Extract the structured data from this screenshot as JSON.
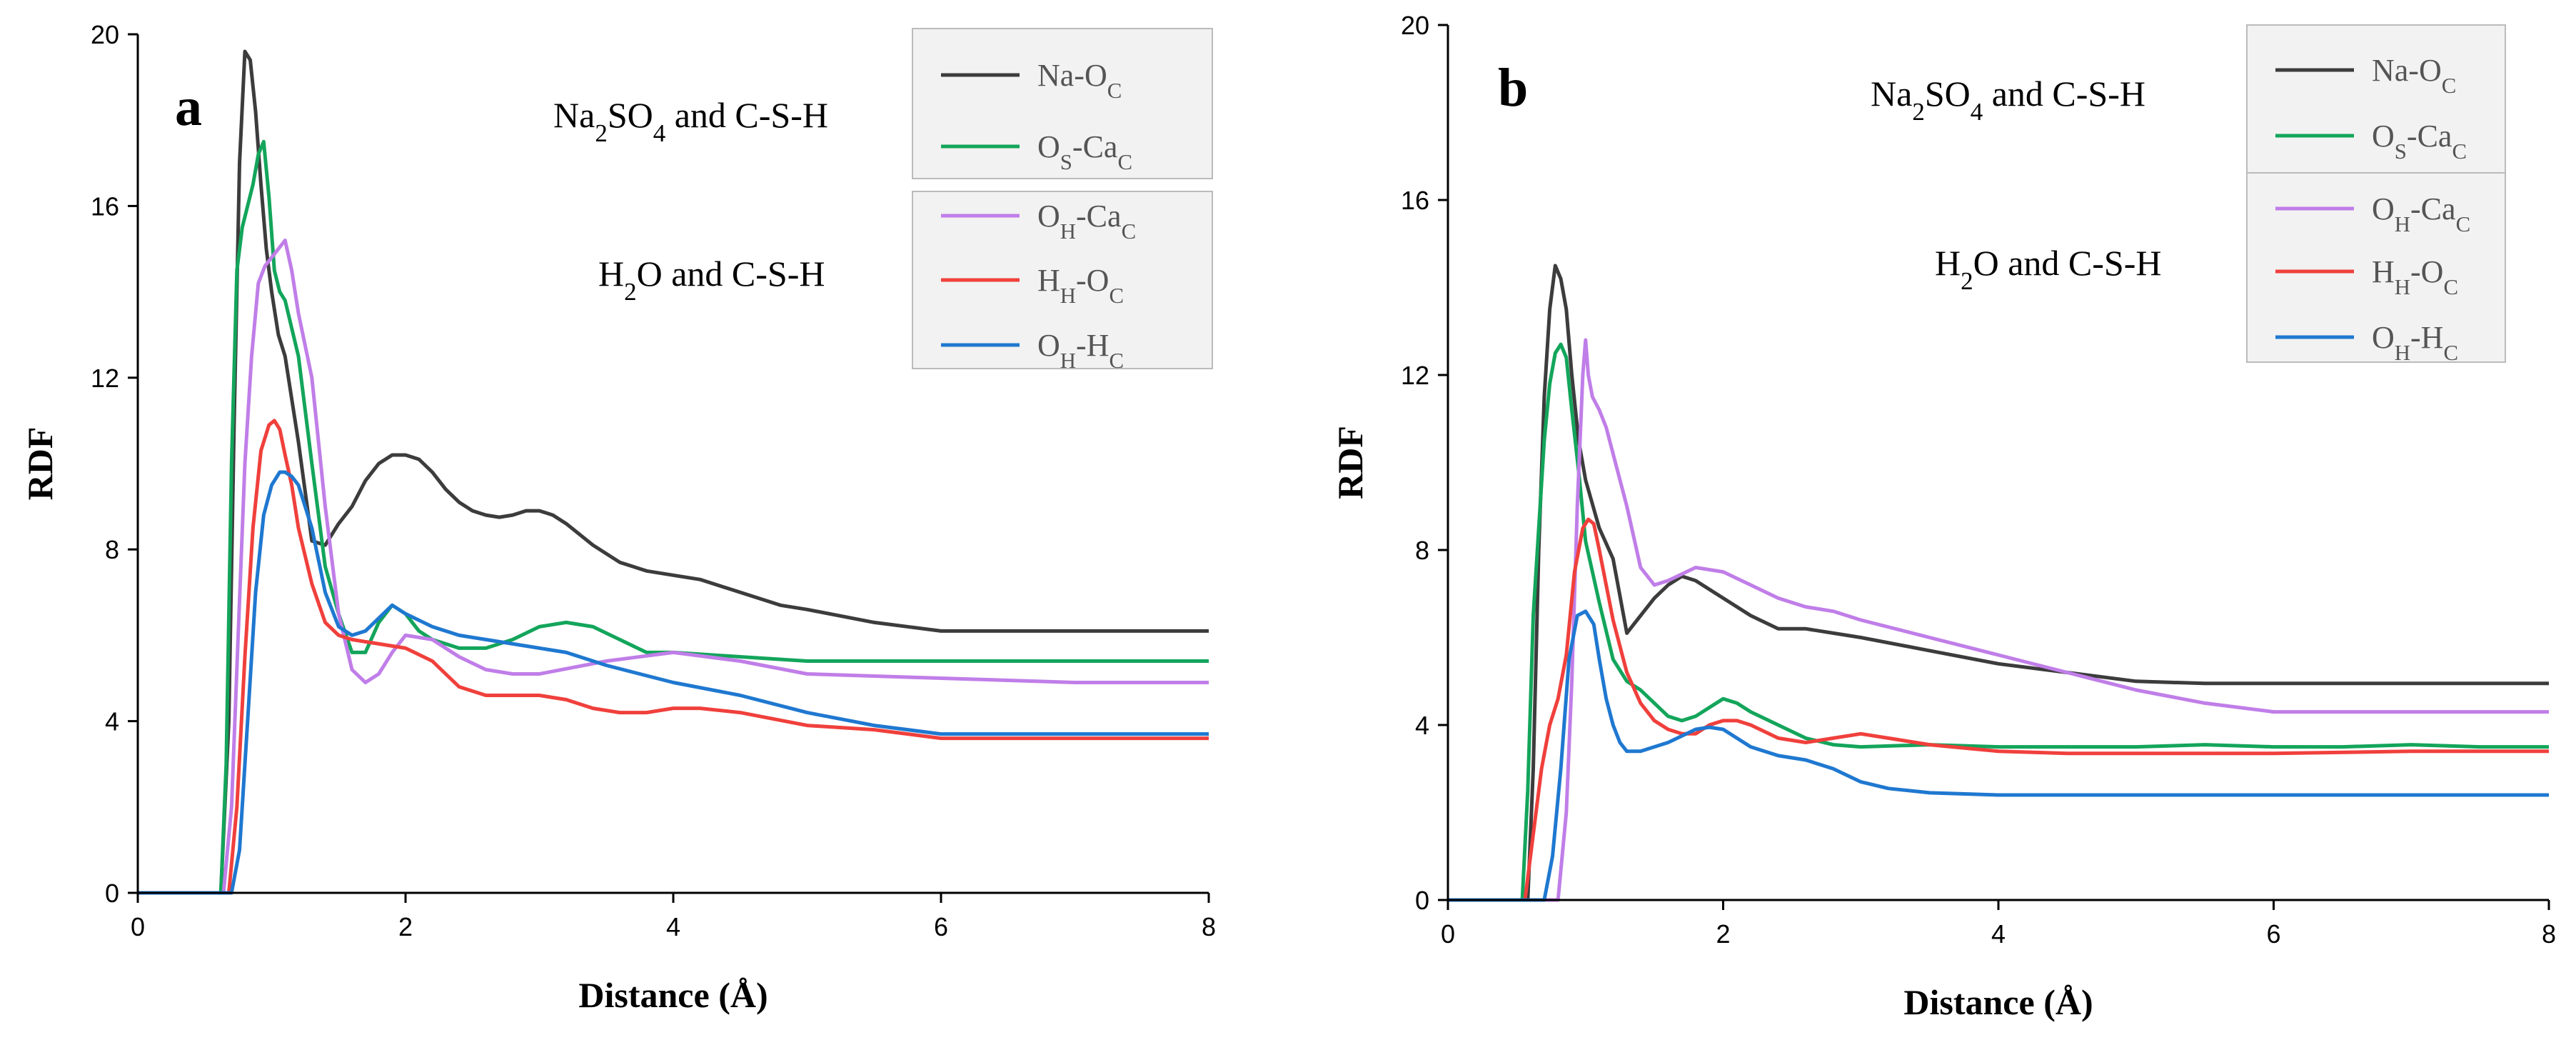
{
  "chart_data": [
    {
      "panel": "a",
      "type": "line",
      "xlabel": "Distance (Å)",
      "ylabel": "RDF",
      "xlim": [
        0,
        8
      ],
      "ylim": [
        0,
        20
      ],
      "xticks": [
        0,
        2,
        4,
        6,
        8
      ],
      "yticks": [
        0,
        4,
        8,
        12,
        16,
        20
      ],
      "groups": [
        {
          "label_main": "Na",
          "label_sub": "2",
          "label_main2": "SO",
          "label_sub2": "4",
          "label_rest": " and C-S-H",
          "series": [
            0,
            1
          ]
        },
        {
          "label_main": "H",
          "label_sub": "2",
          "label_main2": "O",
          "label_sub2": "",
          "label_rest": " and C-S-H",
          "series": [
            2,
            3,
            4
          ]
        }
      ],
      "series": [
        {
          "name": "Na-OC",
          "label_a": "Na-O",
          "sub_a": "C",
          "label_b": "",
          "sub_b": "",
          "color": "#3c3c3c",
          "x": [
            0,
            0.62,
            0.68,
            0.72,
            0.76,
            0.8,
            0.84,
            0.88,
            0.92,
            0.96,
            1.0,
            1.05,
            1.1,
            1.2,
            1.3,
            1.4,
            1.5,
            1.6,
            1.7,
            1.8,
            1.9,
            2.0,
            2.1,
            2.2,
            2.3,
            2.4,
            2.5,
            2.6,
            2.7,
            2.8,
            2.9,
            3.0,
            3.1,
            3.2,
            3.4,
            3.6,
            3.8,
            4.0,
            4.2,
            4.4,
            4.6,
            4.8,
            5.0,
            5.5,
            6.0,
            7.0,
            8.0
          ],
          "y": [
            0,
            0,
            4,
            11,
            17,
            19.6,
            19.4,
            18.2,
            16.5,
            15.0,
            14.0,
            13.0,
            12.5,
            10.5,
            8.2,
            8.1,
            8.6,
            9.0,
            9.6,
            10.0,
            10.2,
            10.2,
            10.1,
            9.8,
            9.4,
            9.1,
            8.9,
            8.8,
            8.75,
            8.8,
            8.9,
            8.9,
            8.8,
            8.6,
            8.1,
            7.7,
            7.5,
            7.4,
            7.3,
            7.1,
            6.9,
            6.7,
            6.6,
            6.3,
            6.1,
            6.1,
            6.1
          ]
        },
        {
          "name": "OS-CaC",
          "label_a": "O",
          "sub_a": "S",
          "label_b": "-Ca",
          "sub_b": "C",
          "color": "#13a55b",
          "x": [
            0,
            0.62,
            0.66,
            0.7,
            0.74,
            0.78,
            0.82,
            0.86,
            0.9,
            0.94,
            0.98,
            1.02,
            1.06,
            1.1,
            1.2,
            1.3,
            1.4,
            1.5,
            1.6,
            1.7,
            1.8,
            1.9,
            2.0,
            2.1,
            2.2,
            2.4,
            2.6,
            2.8,
            3.0,
            3.2,
            3.4,
            3.6,
            3.8,
            4.0,
            4.5,
            5.0,
            6.0,
            7.0,
            8.0
          ],
          "y": [
            0,
            0,
            3,
            10,
            14.5,
            15.5,
            16.0,
            16.5,
            17.2,
            17.5,
            16.2,
            14.5,
            14.0,
            13.8,
            12.5,
            10.0,
            7.6,
            6.5,
            5.6,
            5.6,
            6.3,
            6.7,
            6.5,
            6.1,
            5.9,
            5.7,
            5.7,
            5.9,
            6.2,
            6.3,
            6.2,
            5.9,
            5.6,
            5.6,
            5.5,
            5.4,
            5.4,
            5.4,
            5.4
          ]
        },
        {
          "name": "OH-CaC",
          "label_a": "O",
          "sub_a": "H",
          "label_b": "-Ca",
          "sub_b": "C",
          "color": "#c07ee8",
          "x": [
            0,
            0.64,
            0.7,
            0.75,
            0.8,
            0.85,
            0.9,
            0.95,
            1.0,
            1.05,
            1.1,
            1.15,
            1.2,
            1.3,
            1.4,
            1.5,
            1.6,
            1.7,
            1.8,
            1.9,
            2.0,
            2.2,
            2.4,
            2.6,
            2.8,
            3.0,
            3.5,
            4.0,
            4.5,
            5.0,
            6.0,
            7.0,
            8.0
          ],
          "y": [
            0,
            0,
            2,
            6,
            10,
            12.5,
            14.2,
            14.6,
            14.8,
            15.0,
            15.2,
            14.5,
            13.5,
            12.0,
            9.0,
            6.5,
            5.2,
            4.9,
            5.1,
            5.6,
            6.0,
            5.9,
            5.5,
            5.2,
            5.1,
            5.1,
            5.4,
            5.6,
            5.4,
            5.1,
            5.0,
            4.9,
            4.9
          ]
        },
        {
          "name": "HH-OC",
          "label_a": "H",
          "sub_a": "H",
          "label_b": "-O",
          "sub_b": "C",
          "color": "#f0403c",
          "x": [
            0,
            0.68,
            0.74,
            0.8,
            0.86,
            0.92,
            0.98,
            1.02,
            1.06,
            1.1,
            1.15,
            1.2,
            1.3,
            1.4,
            1.5,
            1.6,
            1.8,
            2.0,
            2.2,
            2.4,
            2.6,
            2.8,
            3.0,
            3.2,
            3.4,
            3.6,
            3.8,
            4.0,
            4.2,
            4.5,
            5.0,
            5.5,
            6.0,
            7.0,
            8.0
          ],
          "y": [
            0,
            0,
            2,
            5.5,
            8.5,
            10.3,
            10.9,
            11.0,
            10.8,
            10.2,
            9.5,
            8.5,
            7.2,
            6.3,
            6.0,
            5.9,
            5.8,
            5.7,
            5.4,
            4.8,
            4.6,
            4.6,
            4.6,
            4.5,
            4.3,
            4.2,
            4.2,
            4.3,
            4.3,
            4.2,
            3.9,
            3.8,
            3.6,
            3.6,
            3.6
          ]
        },
        {
          "name": "OH-HC",
          "label_a": "O",
          "sub_a": "H",
          "label_b": "-H",
          "sub_b": "C",
          "color": "#1f78d0",
          "x": [
            0,
            0.7,
            0.76,
            0.82,
            0.88,
            0.94,
            1.0,
            1.06,
            1.1,
            1.15,
            1.2,
            1.3,
            1.4,
            1.5,
            1.6,
            1.7,
            1.8,
            1.9,
            2.0,
            2.2,
            2.4,
            2.6,
            2.8,
            3.0,
            3.2,
            3.5,
            4.0,
            4.5,
            5.0,
            5.5,
            6.0,
            7.0,
            8.0
          ],
          "y": [
            0,
            0,
            1,
            4,
            7.0,
            8.8,
            9.5,
            9.8,
            9.8,
            9.7,
            9.5,
            8.5,
            7.0,
            6.2,
            6.0,
            6.1,
            6.4,
            6.7,
            6.5,
            6.2,
            6.0,
            5.9,
            5.8,
            5.7,
            5.6,
            5.3,
            4.9,
            4.6,
            4.2,
            3.9,
            3.7,
            3.7,
            3.7
          ]
        }
      ]
    },
    {
      "panel": "b",
      "type": "line",
      "xlabel": "Distance (Å)",
      "ylabel": "RDF",
      "xlim": [
        0,
        8
      ],
      "ylim": [
        0,
        20
      ],
      "xticks": [
        0,
        2,
        4,
        6,
        8
      ],
      "yticks": [
        0,
        4,
        8,
        12,
        16,
        20
      ],
      "groups": [
        {
          "label_main": "Na",
          "label_sub": "2",
          "label_main2": "SO",
          "label_sub2": "4",
          "label_rest": " and C-S-H",
          "series": [
            0,
            1
          ]
        },
        {
          "label_main": "H",
          "label_sub": "2",
          "label_main2": "O",
          "label_sub2": "",
          "label_rest": " and C-S-H",
          "series": [
            2,
            3,
            4
          ]
        }
      ],
      "series": [
        {
          "name": "Na-OC",
          "label_a": "Na-O",
          "sub_a": "C",
          "label_b": "",
          "sub_b": "",
          "color": "#3c3c3c",
          "x": [
            0,
            0.58,
            0.62,
            0.66,
            0.7,
            0.74,
            0.78,
            0.82,
            0.86,
            0.9,
            0.95,
            1.0,
            1.1,
            1.2,
            1.3,
            1.4,
            1.5,
            1.6,
            1.7,
            1.8,
            1.9,
            2.0,
            2.2,
            2.4,
            2.6,
            2.8,
            3.0,
            3.5,
            4.0,
            4.5,
            5.0,
            5.5,
            6.0,
            7.0,
            8.0
          ],
          "y": [
            0,
            0,
            3,
            8,
            11.5,
            13.5,
            14.5,
            14.2,
            13.5,
            12.0,
            10.5,
            9.6,
            8.5,
            7.8,
            6.1,
            6.5,
            6.9,
            7.2,
            7.4,
            7.3,
            7.1,
            6.9,
            6.5,
            6.2,
            6.2,
            6.1,
            6.0,
            5.7,
            5.4,
            5.2,
            5.0,
            4.95,
            4.95,
            4.95,
            4.95
          ]
        },
        {
          "name": "OS-CaC",
          "label_a": "O",
          "sub_a": "S",
          "label_b": "-Ca",
          "sub_b": "C",
          "color": "#13a55b",
          "x": [
            0,
            0.54,
            0.58,
            0.62,
            0.66,
            0.7,
            0.74,
            0.78,
            0.82,
            0.86,
            0.9,
            0.95,
            1.0,
            1.1,
            1.2,
            1.3,
            1.4,
            1.5,
            1.6,
            1.7,
            1.8,
            1.9,
            2.0,
            2.1,
            2.2,
            2.4,
            2.6,
            2.8,
            3.0,
            3.5,
            4.0,
            4.5,
            5.0,
            5.5,
            6.0,
            6.5,
            7.0,
            7.5,
            8.0
          ],
          "y": [
            0,
            0,
            2.5,
            6.5,
            8.5,
            10.5,
            11.8,
            12.5,
            12.7,
            12.4,
            11.2,
            9.8,
            8.2,
            6.8,
            5.5,
            5.0,
            4.8,
            4.5,
            4.2,
            4.1,
            4.2,
            4.4,
            4.6,
            4.5,
            4.3,
            4.0,
            3.7,
            3.55,
            3.5,
            3.55,
            3.5,
            3.5,
            3.5,
            3.55,
            3.5,
            3.5,
            3.55,
            3.5,
            3.5
          ]
        },
        {
          "name": "OH-CaC",
          "label_a": "O",
          "sub_a": "H",
          "label_b": "-Ca",
          "sub_b": "C",
          "color": "#c07ee8",
          "x": [
            0,
            0.8,
            0.86,
            0.9,
            0.94,
            0.98,
            1.0,
            1.02,
            1.05,
            1.1,
            1.15,
            1.2,
            1.3,
            1.4,
            1.5,
            1.6,
            1.8,
            2.0,
            2.2,
            2.4,
            2.6,
            2.8,
            3.0,
            3.5,
            4.0,
            4.5,
            5.0,
            5.5,
            6.0,
            7.0,
            8.0
          ],
          "y": [
            0,
            0,
            2,
            5,
            9.0,
            12.0,
            12.8,
            12.0,
            11.5,
            11.2,
            10.8,
            10.2,
            9.0,
            7.6,
            7.2,
            7.3,
            7.6,
            7.5,
            7.2,
            6.9,
            6.7,
            6.6,
            6.4,
            6.0,
            5.6,
            5.2,
            4.8,
            4.5,
            4.3,
            4.3,
            4.3
          ]
        },
        {
          "name": "HH-OC",
          "label_a": "H",
          "sub_a": "H",
          "label_b": "-O",
          "sub_b": "C",
          "color": "#f0403c",
          "x": [
            0,
            0.56,
            0.62,
            0.68,
            0.74,
            0.8,
            0.86,
            0.92,
            0.98,
            1.02,
            1.06,
            1.1,
            1.2,
            1.3,
            1.4,
            1.5,
            1.6,
            1.7,
            1.8,
            1.9,
            2.0,
            2.1,
            2.2,
            2.4,
            2.6,
            2.8,
            3.0,
            3.2,
            3.5,
            4.0,
            4.5,
            5.0,
            6.0,
            7.0,
            8.0
          ],
          "y": [
            0,
            0,
            1.5,
            3.0,
            4.0,
            4.6,
            5.6,
            7.5,
            8.5,
            8.7,
            8.6,
            8.0,
            6.4,
            5.2,
            4.5,
            4.1,
            3.9,
            3.8,
            3.8,
            4.0,
            4.1,
            4.1,
            4.0,
            3.7,
            3.6,
            3.7,
            3.8,
            3.7,
            3.55,
            3.4,
            3.35,
            3.35,
            3.35,
            3.4,
            3.4
          ]
        },
        {
          "name": "OH-HC",
          "label_a": "O",
          "sub_a": "H",
          "label_b": "-H",
          "sub_b": "C",
          "color": "#1f78d0",
          "x": [
            0,
            0.7,
            0.76,
            0.82,
            0.88,
            0.94,
            1.0,
            1.06,
            1.1,
            1.15,
            1.2,
            1.25,
            1.3,
            1.4,
            1.5,
            1.6,
            1.8,
            1.9,
            2.0,
            2.2,
            2.4,
            2.6,
            2.8,
            3.0,
            3.2,
            3.5,
            4.0,
            5.0,
            6.0,
            7.0,
            8.0
          ],
          "y": [
            0,
            0,
            1,
            3.0,
            5.5,
            6.5,
            6.6,
            6.3,
            5.5,
            4.6,
            4.0,
            3.6,
            3.4,
            3.4,
            3.5,
            3.6,
            3.9,
            3.95,
            3.9,
            3.5,
            3.3,
            3.2,
            3.0,
            2.7,
            2.55,
            2.45,
            2.4,
            2.4,
            2.4,
            2.4,
            2.4
          ]
        }
      ]
    }
  ]
}
